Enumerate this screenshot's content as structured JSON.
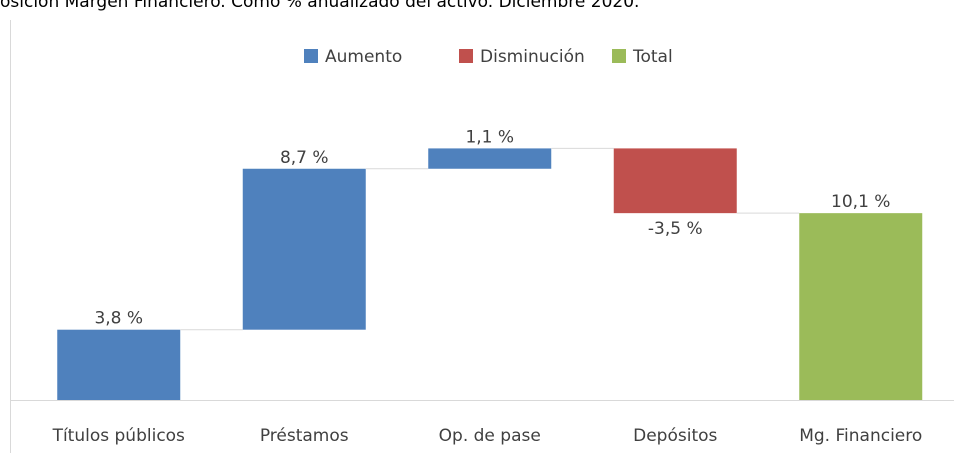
{
  "chart_data": {
    "type": "waterfall",
    "title": "osición Margen Financiero. Como % anualizado del activo. Diciembre 2020.",
    "categories": [
      "Títulos públicos",
      "Préstamos",
      "Op. de pase",
      "Depósitos",
      "Mg. Financiero"
    ],
    "series": [
      {
        "name": "Aumento",
        "color": "#4f81bd",
        "values": [
          3.8,
          8.7,
          1.1,
          null,
          null
        ],
        "value_labels": [
          "3,8 %",
          "8,7 %",
          "1,1 %",
          null,
          null
        ]
      },
      {
        "name": "Disminución",
        "color": "#c0504d",
        "values": [
          null,
          null,
          null,
          -3.5,
          null
        ],
        "value_labels": [
          null,
          null,
          null,
          "-3,5 %",
          null
        ]
      },
      {
        "name": "Total",
        "color": "#9bbb59",
        "values": [
          null,
          null,
          null,
          null,
          10.1
        ],
        "value_labels": [
          null,
          null,
          null,
          null,
          "10,1 %"
        ]
      }
    ]
  }
}
